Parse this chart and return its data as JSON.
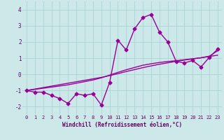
{
  "x": [
    0,
    1,
    2,
    3,
    4,
    5,
    6,
    7,
    8,
    9,
    10,
    11,
    12,
    13,
    14,
    15,
    16,
    17,
    18,
    19,
    20,
    21,
    22,
    23
  ],
  "y_main": [
    -1.0,
    -1.1,
    -1.1,
    -1.3,
    -1.5,
    -1.8,
    -1.2,
    -1.3,
    -1.2,
    -1.9,
    -0.5,
    2.1,
    1.5,
    2.8,
    3.5,
    3.7,
    2.6,
    2.0,
    0.8,
    0.7,
    0.85,
    0.45,
    1.05,
    1.55
  ],
  "y_line1": [
    -1.0,
    -0.91,
    -0.82,
    -0.73,
    -0.64,
    -0.55,
    -0.46,
    -0.37,
    -0.28,
    -0.19,
    -0.08,
    0.04,
    0.17,
    0.29,
    0.41,
    0.52,
    0.62,
    0.71,
    0.8,
    0.88,
    0.95,
    1.02,
    1.1,
    1.18
  ],
  "y_line2": [
    -1.0,
    -0.93,
    -0.86,
    -0.79,
    -0.72,
    -0.65,
    -0.55,
    -0.45,
    -0.35,
    -0.22,
    -0.05,
    0.12,
    0.28,
    0.42,
    0.56,
    0.65,
    0.73,
    0.79,
    0.84,
    0.9,
    0.96,
    1.02,
    1.12,
    1.45
  ],
  "line_color": "#990099",
  "bg_color": "#cce8e8",
  "grid_color": "#aad4d4",
  "ylim": [
    -2.5,
    4.5
  ],
  "xlim": [
    -0.5,
    23.5
  ],
  "yticks": [
    -2,
    -1,
    0,
    1,
    2,
    3,
    4
  ],
  "xtick_labels": [
    "0",
    "1",
    "2",
    "3",
    "4",
    "5",
    "6",
    "7",
    "8",
    "9",
    "10",
    "11",
    "12",
    "13",
    "14",
    "15",
    "16",
    "17",
    "18",
    "19",
    "20",
    "21",
    "22",
    "23"
  ],
  "xlabel": "Windchill (Refroidissement éolien,°C)",
  "marker": "D",
  "markersize": 2.5,
  "linewidth": 1.0
}
